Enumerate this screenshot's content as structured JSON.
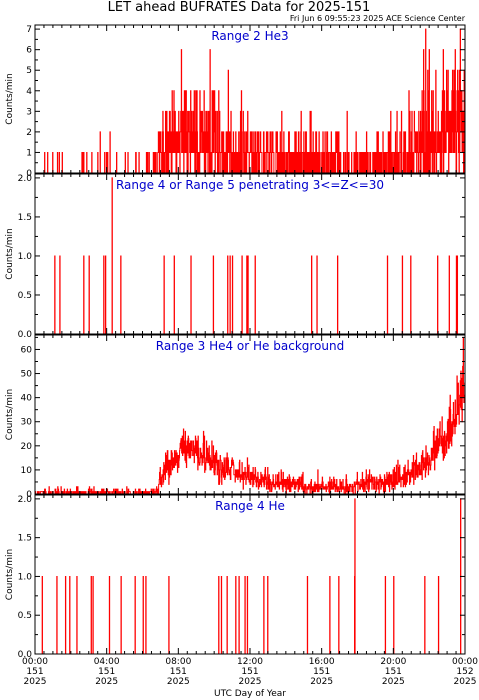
{
  "figure": {
    "title": "LET ahead BUFRATES Data for 2025-151",
    "timestamp": "Fri Jun  6 09:55:23 2025 ACE Science Center",
    "xlabel": "UTC Day of Year"
  },
  "colors": {
    "series": "#ff0000",
    "panel_title": "#0000cc",
    "axes": "#000000"
  },
  "chart_data": [
    {
      "type": "line",
      "title": "Range 2 He3",
      "ylabel": "Counts/min",
      "ylim": [
        0,
        7.2
      ],
      "yticks": [
        0,
        1,
        2,
        3,
        4,
        5,
        6,
        7
      ],
      "ytick_labels": [
        "0",
        "1",
        "2",
        "3",
        "4",
        "5",
        "6",
        "7"
      ],
      "xlim": [
        0,
        24
      ],
      "profile": "he3",
      "seed": 11
    },
    {
      "type": "line",
      "title": "Range 4 or Range 5 penetrating 3<=Z<=30",
      "ylabel": "Counts/min",
      "ylim": [
        0,
        2.05
      ],
      "yticks": [
        0,
        0.5,
        1,
        1.5,
        2
      ],
      "ytick_labels": [
        "0.0",
        "0.5",
        "1.0",
        "1.5",
        "2.0"
      ],
      "xlim": [
        0,
        24
      ],
      "profile": "sparse",
      "seed": 23,
      "spikes": [
        {
          "x": 4.3,
          "y": 2
        }
      ]
    },
    {
      "type": "line",
      "title": "Range 3 He4 or He background",
      "ylabel": "Counts/min",
      "ylim": [
        0,
        66
      ],
      "yticks": [
        0,
        10,
        20,
        30,
        40,
        50,
        60
      ],
      "ytick_labels": [
        "0",
        "10",
        "20",
        "30",
        "40",
        "50",
        "60"
      ],
      "xlim": [
        0,
        24
      ],
      "profile": "he4",
      "seed": 37
    },
    {
      "type": "line",
      "title": "Range 4 He",
      "ylabel": "Counts/min",
      "ylim": [
        0,
        2.05
      ],
      "yticks": [
        0,
        0.5,
        1,
        1.5,
        2
      ],
      "ytick_labels": [
        "0.0",
        "0.5",
        "1.0",
        "1.5",
        "2.0"
      ],
      "xlim": [
        0,
        24
      ],
      "profile": "sparse",
      "seed": 51,
      "spikes": [
        {
          "x": 17.85,
          "y": 2
        },
        {
          "x": 23.75,
          "y": 2
        }
      ]
    }
  ],
  "xaxis": {
    "ticks": [
      {
        "x": 0,
        "time": "00:00",
        "doy": "151",
        "year": "2025"
      },
      {
        "x": 4,
        "time": "04:00",
        "doy": "151",
        "year": "2025"
      },
      {
        "x": 8,
        "time": "08:00",
        "doy": "151",
        "year": "2025"
      },
      {
        "x": 12,
        "time": "12:00",
        "doy": "151",
        "year": "2025"
      },
      {
        "x": 16,
        "time": "16:00",
        "doy": "151",
        "year": "2025"
      },
      {
        "x": 20,
        "time": "20:00",
        "doy": "151",
        "year": "2025"
      },
      {
        "x": 24,
        "time": "00:00",
        "doy": "152",
        "year": "2025"
      }
    ],
    "minor_step": 0.5
  }
}
